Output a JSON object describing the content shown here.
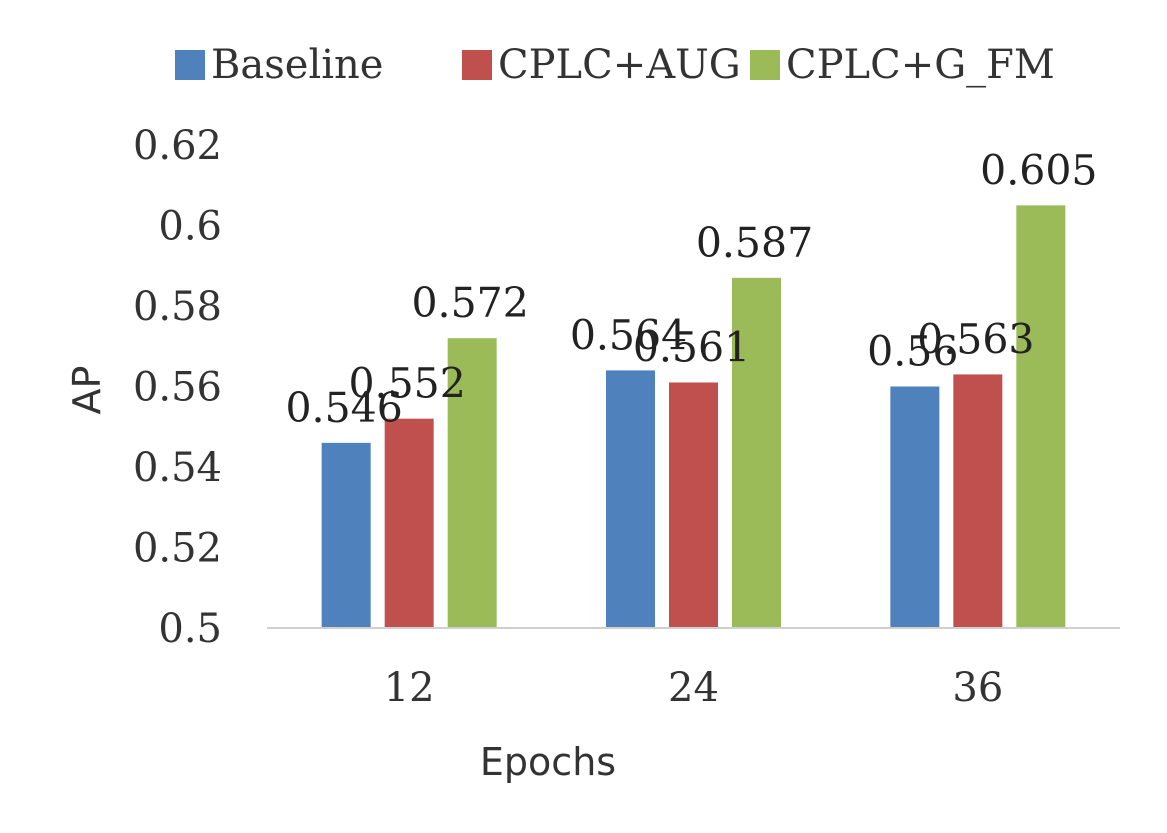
{
  "chart_data": {
    "type": "bar",
    "categories": [
      "12",
      "24",
      "36"
    ],
    "series": [
      {
        "name": "Baseline",
        "values": [
          0.546,
          0.564,
          0.56
        ],
        "labels": [
          "0.546",
          "0.564",
          "0.56"
        ]
      },
      {
        "name": "CPLC+AUG",
        "values": [
          0.552,
          0.561,
          0.563
        ],
        "labels": [
          "0.552",
          "0.561",
          "0.563"
        ]
      },
      {
        "name": "CPLC+G_FM",
        "values": [
          0.572,
          0.587,
          0.605
        ],
        "labels": [
          "0.572",
          "0.587",
          "0.605"
        ]
      }
    ],
    "colors": [
      "#4F81BD",
      "#C0504D",
      "#9BBB59"
    ],
    "xlabel": "Epochs",
    "ylabel": "AP",
    "ylim": [
      0.5,
      0.62
    ],
    "yticks": [
      0.5,
      0.52,
      0.54,
      0.56,
      0.58,
      0.6,
      0.62
    ],
    "ytick_labels": [
      "0.5",
      "0.52",
      "0.54",
      "0.56",
      "0.58",
      "0.6",
      "0.62"
    ],
    "grid": false,
    "legend_position": "top"
  }
}
